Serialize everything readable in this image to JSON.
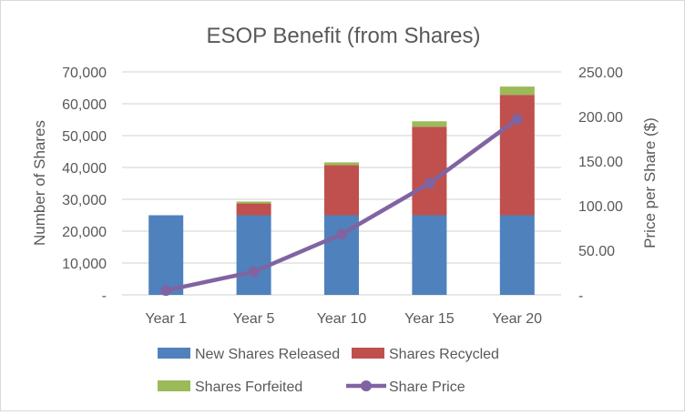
{
  "chart_data": {
    "type": "bar",
    "stacked": true,
    "title": "ESOP Benefit (from Shares)",
    "ylabel": "Number of Shares",
    "y2label": "Price per Share ($)",
    "ylim": [
      0,
      70000
    ],
    "y2lim": [
      0,
      250
    ],
    "yticks": [
      "-",
      "10,000",
      "20,000",
      "30,000",
      "40,000",
      "50,000",
      "60,000",
      "70,000"
    ],
    "y2ticks": [
      "-",
      "50.00",
      "100.00",
      "150.00",
      "200.00",
      "250.00"
    ],
    "grid": true,
    "legend": "bottom",
    "categories": [
      "Year 1",
      "Year 5",
      "Year 10",
      "Year 15",
      "Year 20"
    ],
    "series": [
      {
        "name": "New Shares Released",
        "type": "bar",
        "axis": "left",
        "color": "#4f81bd",
        "values": [
          25000,
          25000,
          25000,
          25000,
          25000
        ]
      },
      {
        "name": "Shares Recycled",
        "type": "bar",
        "axis": "left",
        "color": "#c0504d",
        "values": [
          0,
          3700,
          15700,
          27800,
          37800
        ]
      },
      {
        "name": "Shares Forfeited",
        "type": "bar",
        "axis": "left",
        "color": "#9bbb59",
        "values": [
          0,
          600,
          900,
          1700,
          2600
        ]
      },
      {
        "name": "Share Price",
        "type": "line",
        "axis": "right",
        "color": "#8064a2",
        "values": [
          5,
          26,
          68,
          125,
          197
        ]
      }
    ]
  }
}
